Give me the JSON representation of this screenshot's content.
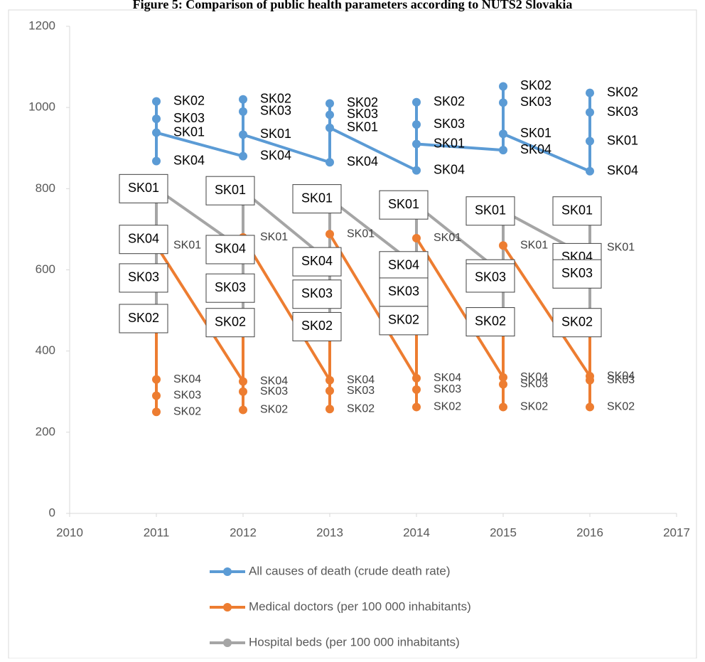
{
  "chart_data": {
    "type": "line",
    "title": "Figure 5: Comparison of public health parameters according to NUTS2 Slovakia",
    "xlim": [
      2010,
      2017
    ],
    "xticks": [
      2010,
      2011,
      2012,
      2013,
      2014,
      2015,
      2016,
      2017
    ],
    "ylim": [
      0,
      1200
    ],
    "yticks": [
      0,
      200,
      400,
      600,
      800,
      1000,
      1200
    ],
    "grid": false,
    "legend": "bottom",
    "series": [
      {
        "name": "All causes of death (crude death rate)",
        "color": "#5b9bd5",
        "x": [
          2011,
          2011,
          2011,
          2011,
          2012,
          2012,
          2012,
          2012,
          2013,
          2013,
          2013,
          2013,
          2014,
          2014,
          2014,
          2014,
          2015,
          2015,
          2015,
          2015,
          2016,
          2016,
          2016,
          2016
        ],
        "values": [
          868,
          972,
          1015,
          938,
          880,
          990,
          1020,
          933,
          865,
          982,
          1010,
          950,
          845,
          958,
          1013,
          910,
          895,
          1012,
          1052,
          935,
          843,
          988,
          1036,
          917
        ],
        "point_labels": [
          "SK04",
          "SK03",
          "SK02",
          "SK01",
          "SK04",
          "SK03",
          "SK02",
          "SK01",
          "SK04",
          "SK03",
          "SK02",
          "SK01",
          "SK04",
          "SK03",
          "SK02",
          "SK01",
          "SK04",
          "SK03",
          "SK02",
          "SK01",
          "SK04",
          "SK03",
          "SK02",
          "SK01"
        ]
      },
      {
        "name": "Medical doctors (per 100 000 inhabitants)",
        "color": "#ed7d31",
        "x": [
          2011,
          2011,
          2011,
          2011,
          2012,
          2012,
          2012,
          2012,
          2013,
          2013,
          2013,
          2013,
          2014,
          2014,
          2014,
          2014,
          2015,
          2015,
          2015,
          2015,
          2016,
          2016,
          2016,
          2016
        ],
        "values": [
          330,
          290,
          250,
          660,
          325,
          300,
          255,
          680,
          328,
          302,
          257,
          688,
          333,
          305,
          262,
          678,
          335,
          318,
          262,
          660,
          338,
          328,
          262,
          655
        ],
        "point_labels": [
          "SK04",
          "SK03",
          "SK02",
          "SK01",
          "SK04",
          "SK03",
          "SK02",
          "SK01",
          "SK04",
          "SK03",
          "SK02",
          "SK01",
          "SK04",
          "SK03",
          "SK02",
          "SK01",
          "SK04",
          "SK03",
          "SK02",
          "SK01",
          "SK04",
          "SK03",
          "SK02",
          "SK01"
        ]
      },
      {
        "name": "Hospital beds (per 100 000 inhabitants)",
        "color": "#a5a5a5",
        "x": [
          2011,
          2011,
          2011,
          2011,
          2012,
          2012,
          2012,
          2012,
          2013,
          2013,
          2013,
          2013,
          2014,
          2014,
          2014,
          2014,
          2015,
          2015,
          2015,
          2015,
          2016,
          2016,
          2016,
          2016
        ],
        "values": [
          675,
          580,
          480,
          800,
          650,
          555,
          470,
          795,
          620,
          540,
          460,
          775,
          610,
          545,
          475,
          760,
          590,
          580,
          472,
          745,
          630,
          590,
          470,
          745
        ],
        "point_labels": [
          "SK04",
          "SK03",
          "SK02",
          "SK01",
          "SK04",
          "SK03",
          "SK02",
          "SK01",
          "SK04",
          "SK03",
          "SK02",
          "SK01",
          "SK04",
          "SK03",
          "SK02",
          "SK01",
          "SK04",
          "SK03",
          "SK02",
          "SK01",
          "SK04",
          "SK03",
          "SK02",
          "SK01"
        ]
      }
    ]
  }
}
